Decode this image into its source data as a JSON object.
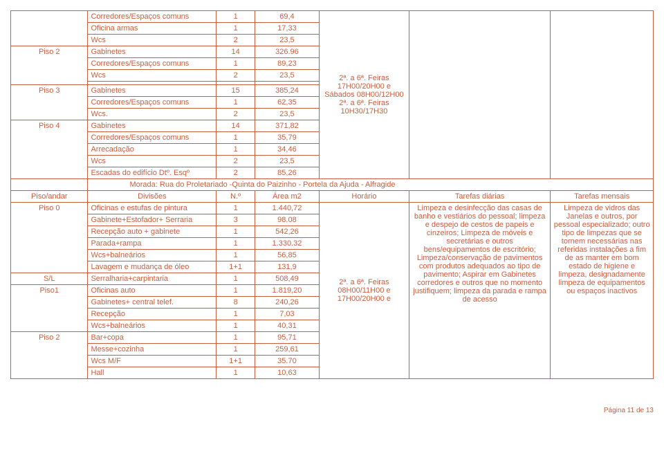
{
  "cols": {
    "c0": "12%",
    "c1": "20%",
    "c2": "6%",
    "c3": "10%",
    "c4": "14%",
    "c5": "22%",
    "c6": "16%"
  },
  "section1": {
    "leftBlocks": [
      {
        "floor": "",
        "rows": [
          {
            "d": "Corredores/Espaços comuns",
            "n": "1",
            "a": "69,4"
          },
          {
            "d": "Oficina armas",
            "n": "1",
            "a": "17,33"
          },
          {
            "d": "Wcs",
            "n": "2",
            "a": "23,5"
          }
        ]
      },
      {
        "floor": "Piso 2",
        "rows": [
          {
            "d": "Gabinetes",
            "n": "14",
            "a": "326.96"
          },
          {
            "d": "Corredores/Espaços comuns",
            "n": "1",
            "a": "89,23"
          },
          {
            "d": "Wcs",
            "n": "2",
            "a": "23,5"
          },
          {
            "d": "",
            "n": "",
            "a": ""
          }
        ]
      },
      {
        "floor": "Piso 3",
        "rows": [
          {
            "d": "Gabinetes",
            "n": "15",
            "a": "385,24"
          },
          {
            "d": "Corredores/Espaços comuns",
            "n": "1",
            "a": "62,35"
          },
          {
            "d": "Wcs.",
            "n": "2",
            "a": "23,5"
          }
        ]
      },
      {
        "floor": "Piso 4",
        "rows": [
          {
            "d": "Gabinetes",
            "n": "14",
            "a": "371,82"
          },
          {
            "d": "Corredores/Espaços comuns",
            "n": "1",
            "a": "35,79"
          },
          {
            "d": "Arrecadação",
            "n": "1",
            "a": "34,46"
          },
          {
            "d": "Wcs",
            "n": "2",
            "a": "23,5"
          },
          {
            "d": "Escadas do edifício Dtº. Esqº",
            "n": "2",
            "a": "85,26"
          }
        ]
      }
    ],
    "horario": "2ª. a 6ª. Feiras 17H00/20H00 e Sábados 08H00/12H00\n2ª. a 6ª. Feiras 10H30/17H30"
  },
  "morada": "Morada:  Rua do Proletariado -Quinta do Paizinho - Portela da Ajuda - Alfragide",
  "header2": {
    "c0": "Piso/andar",
    "c1": "Divisões",
    "c2": "N.º",
    "c3": "Área m2",
    "c4": "Horário",
    "c5": "Tarefas diárias",
    "c6": "Tarefas mensais"
  },
  "section2": {
    "leftBlocks": [
      {
        "floor": "Piso 0",
        "rows": [
          {
            "d": "Oficinas e estufas de pintura",
            "n": "1",
            "a": "1.440,72"
          },
          {
            "d": "Gabinete+Estofador+ Serraria",
            "n": "3",
            "a": "98.08"
          },
          {
            "d": "Recepção auto + gabinete",
            "n": "1",
            "a": "542,26"
          },
          {
            "d": "Parada+rampa",
            "n": "1",
            "a": "1.330.32"
          },
          {
            "d": "Wcs+balneários",
            "n": "1",
            "a": "56,85"
          },
          {
            "d": "Lavagem e mudança de óleo",
            "n": "1+1",
            "a": "131,9"
          }
        ]
      },
      {
        "floor": "S/L",
        "rows": [
          {
            "d": "Serralharia+carpintaria",
            "n": "1",
            "a": "508,49"
          }
        ]
      },
      {
        "floor": "Piso1",
        "rows": [
          {
            "d": "Oficinas auto",
            "n": "1",
            "a": "1.819,20"
          },
          {
            "d": "Gabinetes+ central telef.",
            "n": "8",
            "a": "240,26"
          },
          {
            "d": "Recepção",
            "n": "1",
            "a": "7,03"
          },
          {
            "d": "Wcs+balneários",
            "n": "1",
            "a": "40,31"
          }
        ]
      },
      {
        "floor": "Piso 2",
        "rows": [
          {
            "d": "Bar+copa",
            "n": "1",
            "a": "95,71"
          },
          {
            "d": "Messe+cozinha",
            "n": "1",
            "a": "259,61"
          },
          {
            "d": "Wcs  M/F",
            "n": "1+1",
            "a": "35.70"
          },
          {
            "d": "Hall",
            "n": "1",
            "a": "10,63"
          }
        ]
      }
    ],
    "horario": "2ª. a 6ª. Feiras 08H00/11H00 e 17H00/20H00 e",
    "tarefasDiarias": "Limpeza e desinfecção das casas de banho e vestiários do pessoal; limpeza e despejo de cestos de papeis e cinzeiros; Limpeza de móveis e secretárias e outros bens/equipamentos de escritório; Limpeza/conservação de pavimentos com produtos adequados ao tipo de pavimento; Aspirar em Gabinetes corredores e outros que no momento justifiquem; limpeza da parada e rampa de acesso",
    "tarefasMensais": "Limpeza de vidros das Janelas e outros, por pessoal especializado; outro tipo de limpezas que se tornem necessárias nas referidas instalações a fim de as manter em bom estado de higiene e limpeza, designadamente limpeza de equipamentos ou espaços inactivos"
  },
  "footer": "Página 11 de 13"
}
